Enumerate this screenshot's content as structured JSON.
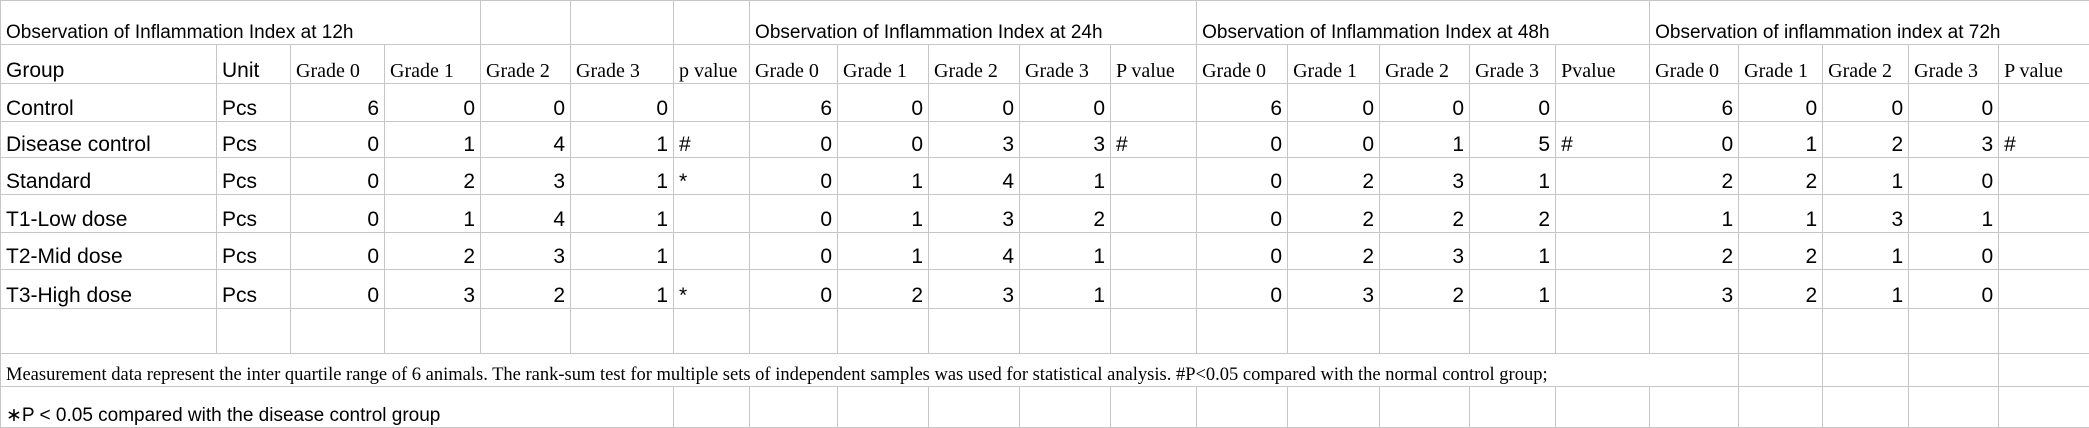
{
  "titles": [
    "Observation of Inflammation Index at 12h",
    "Observation of Inflammation Index at 24h",
    "Observation of Inflammation Index at 48h",
    "Observation of inflammation index at 72h"
  ],
  "header": [
    "Group",
    "Unit",
    "Grade 0",
    "Grade 1",
    "Grade 2",
    "Grade 3",
    "p value",
    "Grade 0",
    "Grade 1",
    "Grade 2",
    "Grade 3",
    "P value",
    "Grade 0",
    "Grade 1",
    "Grade 2",
    "Grade 3",
    "Pvalue",
    "Grade 0",
    "Grade 1",
    "Grade 2",
    "Grade 3",
    "P value"
  ],
  "rows": [
    [
      "Control",
      "Pcs",
      6,
      0,
      0,
      0,
      null,
      6,
      0,
      0,
      0,
      null,
      6,
      0,
      0,
      0,
      null,
      6,
      0,
      0,
      0,
      null
    ],
    [
      "Disease control",
      "Pcs",
      0,
      1,
      4,
      1,
      "#",
      0,
      0,
      3,
      3,
      "#",
      0,
      0,
      1,
      5,
      "#",
      0,
      1,
      2,
      3,
      "#"
    ],
    [
      "Standard",
      "Pcs",
      0,
      2,
      3,
      1,
      "*",
      0,
      1,
      4,
      1,
      null,
      0,
      2,
      3,
      1,
      null,
      2,
      2,
      1,
      0,
      null
    ],
    [
      "T1-Low dose",
      "Pcs",
      0,
      1,
      4,
      1,
      null,
      0,
      1,
      3,
      2,
      null,
      0,
      2,
      2,
      2,
      null,
      1,
      1,
      3,
      1,
      null
    ],
    [
      "T2-Mid dose",
      "Pcs",
      0,
      2,
      3,
      1,
      null,
      0,
      1,
      4,
      1,
      null,
      0,
      2,
      3,
      1,
      null,
      2,
      2,
      1,
      0,
      null
    ],
    [
      "T3-High dose",
      "Pcs",
      0,
      3,
      2,
      1,
      "*",
      0,
      2,
      3,
      1,
      null,
      0,
      3,
      2,
      1,
      null,
      3,
      2,
      1,
      0,
      null
    ]
  ],
  "footnotes": [
    "Measurement data represent the inter quartile range of 6 animals. The rank-sum test for multiple sets of independent samples was used for statistical analysis. #P<0.05 compared with the normal control group;",
    "∗P < 0.05 compared with the disease control group"
  ]
}
